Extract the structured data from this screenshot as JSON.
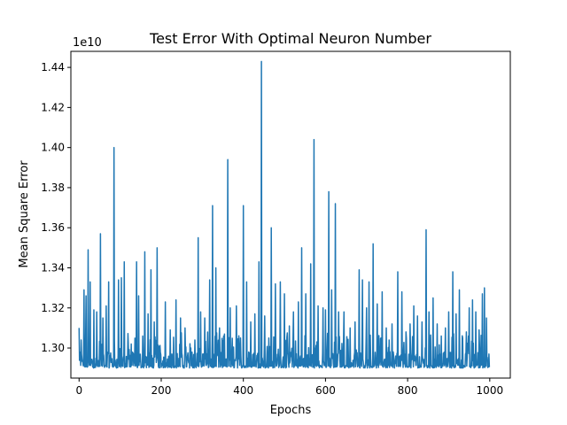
{
  "chart_data": {
    "type": "line",
    "title": "Test Error With Optimal Neuron Number",
    "xlabel": "Epochs",
    "ylabel": "Mean Square Error",
    "y_offset_label": "1e10",
    "y_scale": 10000000000,
    "xlim": [
      -20,
      1050
    ],
    "ylim": [
      1.285,
      1.448
    ],
    "x_ticks": [
      0,
      200,
      400,
      600,
      800,
      1000
    ],
    "x_tick_labels": [
      "0",
      "200",
      "400",
      "600",
      "800",
      "1000"
    ],
    "y_ticks": [
      1.3,
      1.32,
      1.34,
      1.36,
      1.38,
      1.4,
      1.42,
      1.44
    ],
    "y_tick_labels": [
      "1.30",
      "1.32",
      "1.34",
      "1.36",
      "1.38",
      "1.40",
      "1.42",
      "1.44"
    ],
    "grid": false,
    "legend": "none",
    "series": [
      {
        "color": "#1f77b4",
        "baseline": 1.29,
        "x_range": [
          0,
          1000
        ],
        "spikes": [
          {
            "x": 0,
            "y": 1.31
          },
          {
            "x": 5,
            "y": 1.304
          },
          {
            "x": 12,
            "y": 1.329
          },
          {
            "x": 17,
            "y": 1.326
          },
          {
            "x": 22,
            "y": 1.349
          },
          {
            "x": 27,
            "y": 1.333
          },
          {
            "x": 36,
            "y": 1.319
          },
          {
            "x": 43,
            "y": 1.318
          },
          {
            "x": 52,
            "y": 1.357
          },
          {
            "x": 58,
            "y": 1.315
          },
          {
            "x": 66,
            "y": 1.321
          },
          {
            "x": 72,
            "y": 1.333
          },
          {
            "x": 85,
            "y": 1.4
          },
          {
            "x": 96,
            "y": 1.334
          },
          {
            "x": 103,
            "y": 1.335
          },
          {
            "x": 110,
            "y": 1.343
          },
          {
            "x": 120,
            "y": 1.301
          },
          {
            "x": 127,
            "y": 1.302
          },
          {
            "x": 140,
            "y": 1.343
          },
          {
            "x": 145,
            "y": 1.326
          },
          {
            "x": 155,
            "y": 1.306
          },
          {
            "x": 160,
            "y": 1.348
          },
          {
            "x": 168,
            "y": 1.317
          },
          {
            "x": 175,
            "y": 1.339
          },
          {
            "x": 183,
            "y": 1.313
          },
          {
            "x": 190,
            "y": 1.35
          },
          {
            "x": 210,
            "y": 1.323
          },
          {
            "x": 222,
            "y": 1.309
          },
          {
            "x": 236,
            "y": 1.324
          },
          {
            "x": 247,
            "y": 1.315
          },
          {
            "x": 258,
            "y": 1.31
          },
          {
            "x": 272,
            "y": 1.3
          },
          {
            "x": 282,
            "y": 1.304
          },
          {
            "x": 290,
            "y": 1.355
          },
          {
            "x": 296,
            "y": 1.318
          },
          {
            "x": 306,
            "y": 1.315
          },
          {
            "x": 318,
            "y": 1.334
          },
          {
            "x": 325,
            "y": 1.371
          },
          {
            "x": 333,
            "y": 1.34
          },
          {
            "x": 342,
            "y": 1.31
          },
          {
            "x": 352,
            "y": 1.306
          },
          {
            "x": 362,
            "y": 1.394
          },
          {
            "x": 368,
            "y": 1.32
          },
          {
            "x": 383,
            "y": 1.321
          },
          {
            "x": 393,
            "y": 1.305
          },
          {
            "x": 400,
            "y": 1.371
          },
          {
            "x": 408,
            "y": 1.333
          },
          {
            "x": 418,
            "y": 1.313
          },
          {
            "x": 428,
            "y": 1.317
          },
          {
            "x": 438,
            "y": 1.343
          },
          {
            "x": 444,
            "y": 1.443
          },
          {
            "x": 452,
            "y": 1.316
          },
          {
            "x": 462,
            "y": 1.305
          },
          {
            "x": 468,
            "y": 1.36
          },
          {
            "x": 478,
            "y": 1.332
          },
          {
            "x": 490,
            "y": 1.333
          },
          {
            "x": 500,
            "y": 1.327
          },
          {
            "x": 512,
            "y": 1.311
          },
          {
            "x": 522,
            "y": 1.318
          },
          {
            "x": 534,
            "y": 1.323
          },
          {
            "x": 542,
            "y": 1.35
          },
          {
            "x": 552,
            "y": 1.327
          },
          {
            "x": 564,
            "y": 1.342
          },
          {
            "x": 572,
            "y": 1.404
          },
          {
            "x": 582,
            "y": 1.321
          },
          {
            "x": 594,
            "y": 1.32
          },
          {
            "x": 600,
            "y": 1.319
          },
          {
            "x": 608,
            "y": 1.378
          },
          {
            "x": 615,
            "y": 1.329
          },
          {
            "x": 624,
            "y": 1.372
          },
          {
            "x": 632,
            "y": 1.318
          },
          {
            "x": 645,
            "y": 1.318
          },
          {
            "x": 660,
            "y": 1.31
          },
          {
            "x": 672,
            "y": 1.313
          },
          {
            "x": 682,
            "y": 1.339
          },
          {
            "x": 690,
            "y": 1.334
          },
          {
            "x": 700,
            "y": 1.32
          },
          {
            "x": 706,
            "y": 1.333
          },
          {
            "x": 716,
            "y": 1.352
          },
          {
            "x": 726,
            "y": 1.322
          },
          {
            "x": 738,
            "y": 1.328
          },
          {
            "x": 748,
            "y": 1.31
          },
          {
            "x": 755,
            "y": 1.304
          },
          {
            "x": 762,
            "y": 1.312
          },
          {
            "x": 776,
            "y": 1.338
          },
          {
            "x": 786,
            "y": 1.328
          },
          {
            "x": 796,
            "y": 1.308
          },
          {
            "x": 806,
            "y": 1.312
          },
          {
            "x": 815,
            "y": 1.321
          },
          {
            "x": 824,
            "y": 1.316
          },
          {
            "x": 835,
            "y": 1.313
          },
          {
            "x": 845,
            "y": 1.359
          },
          {
            "x": 852,
            "y": 1.318
          },
          {
            "x": 862,
            "y": 1.325
          },
          {
            "x": 872,
            "y": 1.312
          },
          {
            "x": 882,
            "y": 1.306
          },
          {
            "x": 892,
            "y": 1.31
          },
          {
            "x": 900,
            "y": 1.318
          },
          {
            "x": 910,
            "y": 1.338
          },
          {
            "x": 918,
            "y": 1.317
          },
          {
            "x": 926,
            "y": 1.329
          },
          {
            "x": 934,
            "y": 1.305
          },
          {
            "x": 943,
            "y": 1.308
          },
          {
            "x": 950,
            "y": 1.32
          },
          {
            "x": 958,
            "y": 1.324
          },
          {
            "x": 966,
            "y": 1.318
          },
          {
            "x": 974,
            "y": 1.309
          },
          {
            "x": 982,
            "y": 1.327
          },
          {
            "x": 987,
            "y": 1.33
          },
          {
            "x": 992,
            "y": 1.315
          },
          {
            "x": 998,
            "y": 1.297
          }
        ]
      }
    ]
  }
}
